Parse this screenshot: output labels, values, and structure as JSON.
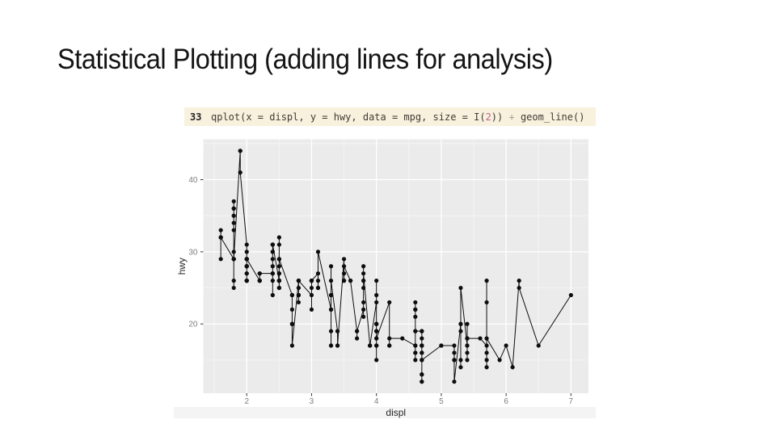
{
  "slide": {
    "title": "Statistical Plotting (adding lines for analysis)"
  },
  "code_chunk": {
    "line_number": "33",
    "segments": {
      "before": "qplot(x = displ, y = hwy, data = mpg, size = I(",
      "number_literal": "2",
      "after_number": ")) ",
      "operator": "+",
      "tail": " geom_line()"
    },
    "colors": {
      "background": "#f7f1de",
      "text": "#403c33",
      "line_number": "#262626",
      "number_literal": "#c75f87",
      "operator": "#a5a095"
    }
  },
  "chart_data": {
    "type": "scatter",
    "title": "",
    "xlabel": "displ",
    "ylabel": "hwy",
    "x_ticks": [
      2,
      3,
      4,
      5,
      6,
      7
    ],
    "y_ticks": [
      20,
      30,
      40
    ],
    "x_minor_ticks": [
      1.5,
      2.5,
      3.5,
      4.5,
      5.5,
      6.5
    ],
    "y_minor_ticks": [
      15,
      25,
      35,
      45
    ],
    "xlim": [
      1.33,
      7.27
    ],
    "ylim": [
      10.4,
      45.6
    ],
    "grid": true,
    "legend": "none",
    "line_connect": "points connected in order of x (geom_line)",
    "style": {
      "panel_bg": "#ebebeb",
      "grid_major": "#ffffff",
      "grid_minor": "#f5f5f5",
      "point_color": "#0d0d0d",
      "line_color": "#0d0d0d",
      "tick_label_color": "#7e7e7e",
      "tick_mark_color": "#333333",
      "axis_title_color": "#262626",
      "bottom_strip": "#f4f4f4",
      "point_radius": 2.6
    },
    "points": [
      [
        1.8,
        29
      ],
      [
        1.8,
        29
      ],
      [
        2,
        31
      ],
      [
        2,
        30
      ],
      [
        2.8,
        26
      ],
      [
        2.8,
        26
      ],
      [
        3.1,
        27
      ],
      [
        1.8,
        26
      ],
      [
        1.8,
        25
      ],
      [
        2,
        28
      ],
      [
        2,
        27
      ],
      [
        2.8,
        25
      ],
      [
        2.8,
        25
      ],
      [
        3.1,
        25
      ],
      [
        3.1,
        25
      ],
      [
        2.8,
        24
      ],
      [
        3.1,
        25
      ],
      [
        4.2,
        23
      ],
      [
        5.3,
        20
      ],
      [
        5.3,
        15
      ],
      [
        5.3,
        20
      ],
      [
        5.7,
        17
      ],
      [
        6,
        17
      ],
      [
        5.7,
        26
      ],
      [
        5.7,
        23
      ],
      [
        6.2,
        26
      ],
      [
        6.2,
        25
      ],
      [
        7,
        24
      ],
      [
        5.3,
        19
      ],
      [
        5.3,
        14
      ],
      [
        5.7,
        15
      ],
      [
        6.5,
        17
      ],
      [
        2.4,
        27
      ],
      [
        2.4,
        30
      ],
      [
        3.1,
        26
      ],
      [
        3.5,
        29
      ],
      [
        3.6,
        26
      ],
      [
        2.4,
        24
      ],
      [
        3,
        24
      ],
      [
        3.3,
        22
      ],
      [
        3.3,
        22
      ],
      [
        3.3,
        24
      ],
      [
        3.3,
        24
      ],
      [
        3.3,
        17
      ],
      [
        3.8,
        22
      ],
      [
        3.8,
        21
      ],
      [
        3.8,
        23
      ],
      [
        4,
        23
      ],
      [
        3.7,
        19
      ],
      [
        3.7,
        18
      ],
      [
        3.9,
        17
      ],
      [
        3.9,
        17
      ],
      [
        4.7,
        19
      ],
      [
        4.7,
        19
      ],
      [
        4.7,
        12
      ],
      [
        5.2,
        17
      ],
      [
        5.2,
        15
      ],
      [
        3.9,
        17
      ],
      [
        4.7,
        17
      ],
      [
        4.7,
        16
      ],
      [
        4.7,
        18
      ],
      [
        5.2,
        15
      ],
      [
        5.7,
        16
      ],
      [
        5.9,
        15
      ],
      [
        4.7,
        17
      ],
      [
        4.7,
        15
      ],
      [
        4.7,
        13
      ],
      [
        4.7,
        13
      ],
      [
        4.7,
        17
      ],
      [
        4.7,
        16
      ],
      [
        4.7,
        16
      ],
      [
        4.7,
        15
      ],
      [
        5.2,
        16
      ],
      [
        5.2,
        12
      ],
      [
        4.6,
        17
      ],
      [
        5.4,
        17
      ],
      [
        5.4,
        18
      ],
      [
        4,
        17
      ],
      [
        4,
        19
      ],
      [
        4,
        17
      ],
      [
        4,
        19
      ],
      [
        4.6,
        19
      ],
      [
        5,
        17
      ],
      [
        4.2,
        17
      ],
      [
        4.2,
        17
      ],
      [
        4.6,
        16
      ],
      [
        4.6,
        16
      ],
      [
        4.6,
        17
      ],
      [
        5.4,
        15
      ],
      [
        5.4,
        17
      ],
      [
        3.8,
        26
      ],
      [
        3.8,
        25
      ],
      [
        4,
        26
      ],
      [
        4,
        24
      ],
      [
        4.6,
        21
      ],
      [
        4.6,
        22
      ],
      [
        4.6,
        23
      ],
      [
        4.6,
        22
      ],
      [
        5.4,
        20
      ],
      [
        1.6,
        33
      ],
      [
        1.6,
        32
      ],
      [
        1.6,
        32
      ],
      [
        1.6,
        29
      ],
      [
        1.6,
        32
      ],
      [
        1.8,
        34
      ],
      [
        1.8,
        36
      ],
      [
        1.8,
        36
      ],
      [
        2,
        29
      ],
      [
        2.4,
        26
      ],
      [
        2.4,
        27
      ],
      [
        2.4,
        30
      ],
      [
        2.4,
        31
      ],
      [
        2.5,
        26
      ],
      [
        2.5,
        26
      ],
      [
        3.3,
        28
      ],
      [
        2,
        26
      ],
      [
        2,
        28
      ],
      [
        2,
        27
      ],
      [
        2,
        28
      ],
      [
        2.7,
        24
      ],
      [
        2.7,
        24
      ],
      [
        2.7,
        24
      ],
      [
        3,
        22
      ],
      [
        3.7,
        19
      ],
      [
        4,
        20
      ],
      [
        4.7,
        17
      ],
      [
        4.7,
        19
      ],
      [
        4.7,
        12
      ],
      [
        5.7,
        14
      ],
      [
        6.1,
        14
      ],
      [
        4,
        15
      ],
      [
        4.2,
        18
      ],
      [
        4.4,
        18
      ],
      [
        4.6,
        15
      ],
      [
        5.4,
        18
      ],
      [
        5.4,
        16
      ],
      [
        5.4,
        18
      ],
      [
        4,
        17
      ],
      [
        4,
        19
      ],
      [
        4.6,
        19
      ],
      [
        5,
        17
      ],
      [
        2.4,
        29
      ],
      [
        2.4,
        27
      ],
      [
        2.5,
        31
      ],
      [
        2.5,
        32
      ],
      [
        3.5,
        27
      ],
      [
        3.5,
        26
      ],
      [
        3,
        26
      ],
      [
        3,
        25
      ],
      [
        3.5,
        26
      ],
      [
        3.3,
        19
      ],
      [
        3.3,
        17
      ],
      [
        4,
        20
      ],
      [
        5.6,
        18
      ],
      [
        3.1,
        30
      ],
      [
        3.8,
        28
      ],
      [
        3.8,
        26
      ],
      [
        3.8,
        27
      ],
      [
        5.3,
        25
      ],
      [
        2.5,
        26
      ],
      [
        2.5,
        27
      ],
      [
        2.5,
        26
      ],
      [
        2.5,
        25
      ],
      [
        2.5,
        27
      ],
      [
        2.5,
        26
      ],
      [
        2.2,
        26
      ],
      [
        2.2,
        26
      ],
      [
        2.5,
        26
      ],
      [
        2.5,
        25
      ],
      [
        2.5,
        27
      ],
      [
        2.5,
        25
      ],
      [
        2.5,
        27
      ],
      [
        2.5,
        26
      ],
      [
        2.7,
        20
      ],
      [
        2.7,
        20
      ],
      [
        3.4,
        19
      ],
      [
        3.4,
        17
      ],
      [
        4,
        18
      ],
      [
        4.7,
        17
      ],
      [
        2.2,
        26
      ],
      [
        2.2,
        27
      ],
      [
        2.4,
        28
      ],
      [
        2.4,
        31
      ],
      [
        3,
        26
      ],
      [
        3,
        26
      ],
      [
        3.5,
        28
      ],
      [
        2.2,
        26
      ],
      [
        2.2,
        27
      ],
      [
        2.4,
        31
      ],
      [
        2.4,
        31
      ],
      [
        3,
        26
      ],
      [
        3,
        26
      ],
      [
        3.3,
        26
      ],
      [
        1.8,
        30
      ],
      [
        1.8,
        33
      ],
      [
        1.8,
        35
      ],
      [
        1.8,
        37
      ],
      [
        1.8,
        35
      ],
      [
        4.7,
        15
      ],
      [
        5.7,
        18
      ],
      [
        2.7,
        22
      ],
      [
        2.7,
        20
      ],
      [
        2.7,
        17
      ],
      [
        3.4,
        19
      ],
      [
        3.4,
        17
      ],
      [
        4,
        20
      ],
      [
        4,
        18
      ],
      [
        2,
        29
      ],
      [
        2,
        26
      ],
      [
        2,
        29
      ],
      [
        2,
        28
      ],
      [
        2.8,
        24
      ],
      [
        1.9,
        44
      ],
      [
        2,
        29
      ],
      [
        2,
        26
      ],
      [
        2,
        29
      ],
      [
        2,
        29
      ],
      [
        2.5,
        29
      ],
      [
        2.5,
        29
      ],
      [
        2.8,
        23
      ],
      [
        2.8,
        24
      ],
      [
        1.9,
        44
      ],
      [
        1.9,
        41
      ],
      [
        2,
        29
      ],
      [
        2,
        26
      ],
      [
        2.5,
        28
      ],
      [
        2.5,
        29
      ],
      [
        1.8,
        29
      ],
      [
        1.8,
        29
      ],
      [
        2,
        28
      ],
      [
        2,
        29
      ],
      [
        2.8,
        26
      ],
      [
        2.8,
        26
      ],
      [
        3.6,
        26
      ]
    ]
  }
}
